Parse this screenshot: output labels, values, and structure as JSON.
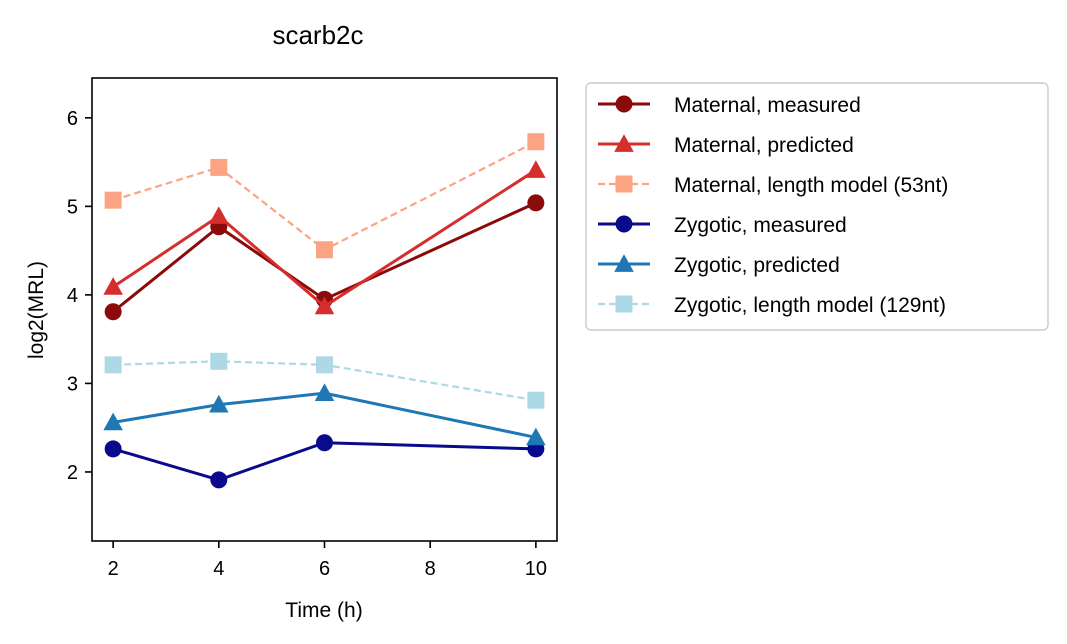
{
  "chart_data": {
    "type": "line",
    "title": "scarb2c",
    "xlabel": "Time (h)",
    "ylabel": "log2(MRL)",
    "xlim": [
      1.6,
      10.4
    ],
    "ylim": [
      1.22,
      6.45
    ],
    "xticks": [
      2,
      4,
      6,
      8,
      10
    ],
    "yticks": [
      2,
      3,
      4,
      5,
      6
    ],
    "x_tick_labels": [
      "2",
      "4",
      "6",
      "8",
      "10"
    ],
    "y_tick_labels": [
      "2",
      "3",
      "4",
      "5",
      "6"
    ],
    "grid": false,
    "legend_position": "outside-right",
    "x": [
      2,
      4,
      6,
      10
    ],
    "series": [
      {
        "name": "Maternal, measured",
        "values": [
          3.81,
          4.77,
          3.95,
          5.04
        ],
        "color": "#8b0a0a",
        "marker": "circle",
        "dash": "solid"
      },
      {
        "name": "Maternal, predicted",
        "values": [
          4.09,
          4.89,
          3.87,
          5.41
        ],
        "color": "#d62d2d",
        "marker": "triangle",
        "dash": "solid"
      },
      {
        "name": "Maternal, length model (53nt)",
        "values": [
          5.07,
          5.44,
          4.51,
          5.73
        ],
        "color": "#fca383",
        "marker": "square",
        "dash": "dashed"
      },
      {
        "name": "Zygotic, measured",
        "values": [
          2.26,
          1.91,
          2.33,
          2.26
        ],
        "color": "#0a0a8c",
        "marker": "circle",
        "dash": "solid"
      },
      {
        "name": "Zygotic, predicted",
        "values": [
          2.56,
          2.76,
          2.89,
          2.39
        ],
        "color": "#1f77b4",
        "marker": "triangle",
        "dash": "solid"
      },
      {
        "name": "Zygotic, length model (129nt)",
        "values": [
          3.21,
          3.25,
          3.21,
          2.81
        ],
        "color": "#add8e6",
        "marker": "square",
        "dash": "dashed"
      }
    ]
  }
}
